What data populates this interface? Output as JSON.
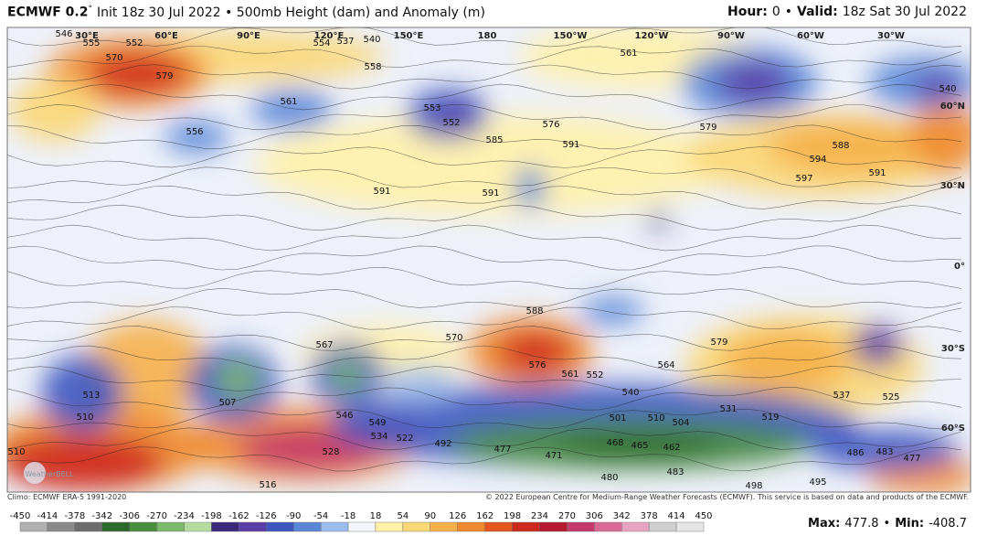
{
  "header": {
    "title_bold": "ECMWF 0.2",
    "degree": "°",
    "title_rest": "Init 18z 30 Jul 2022 • 500mb Height (dam) and Anomaly (m)",
    "hour_label": "Hour:",
    "hour_value": 0,
    "separator": "•",
    "valid_label": "Valid:",
    "valid_value": "18z Sat 30 Jul 2022"
  },
  "map": {
    "longitude_labels": [
      "30°E",
      "60°E",
      "90°E",
      "120°E",
      "150°E",
      "180",
      "150°W",
      "120°W",
      "90°W",
      "60°W",
      "30°W"
    ],
    "latitude_labels": [
      "60°N",
      "30°N",
      "0°",
      "30°S",
      "60°S"
    ],
    "contour_labels": [
      570,
      579,
      561,
      556,
      553,
      552,
      591,
      591,
      585,
      576,
      591,
      561,
      579,
      588,
      597,
      594,
      591,
      540,
      588,
      576,
      567,
      570,
      579,
      564,
      513,
      510,
      507,
      546,
      549,
      534,
      522,
      528,
      516,
      492,
      477,
      471,
      468,
      465,
      462,
      501,
      510,
      504,
      531,
      519,
      537,
      525,
      486,
      483,
      477,
      480,
      483,
      498,
      495,
      510,
      540,
      552,
      561,
      546,
      555,
      552,
      554,
      537,
      540,
      558
    ],
    "logo": "WeatherBELL"
  },
  "footer": {
    "climo": "Climo: ECMWF ERA-5 1991-2020",
    "copyright": "© 2022 European Centre for Medium-Range Weather Forecasts (ECMWF). This service is based on data and products of the ECMWF.",
    "max_label": "Max:",
    "max_value": 477.8,
    "separator": "•",
    "min_label": "Min:",
    "min_value": -408.7
  },
  "colorbar": {
    "ticks": [
      -450,
      -414,
      -378,
      -342,
      -306,
      -270,
      -234,
      -198,
      -162,
      -126,
      -90,
      -54,
      -18,
      18,
      54,
      90,
      126,
      162,
      198,
      234,
      270,
      306,
      342,
      378,
      414,
      450
    ],
    "colors": [
      "#b0b0b0",
      "#8c8c8c",
      "#6e6e6e",
      "#2d6a2d",
      "#4a8f3f",
      "#7cb86a",
      "#b5dca0",
      "#3b2b7a",
      "#5b3fa8",
      "#3f56c0",
      "#5a86d8",
      "#9dbcee",
      "#f4f6fb",
      "#fff1a8",
      "#fbd775",
      "#f6b04a",
      "#ef8a2c",
      "#e5561f",
      "#cf2a1f",
      "#b51a2e",
      "#c43a6a",
      "#d96a98",
      "#e9a3c2",
      "#cfcfcf",
      "#e6e6e6"
    ]
  }
}
